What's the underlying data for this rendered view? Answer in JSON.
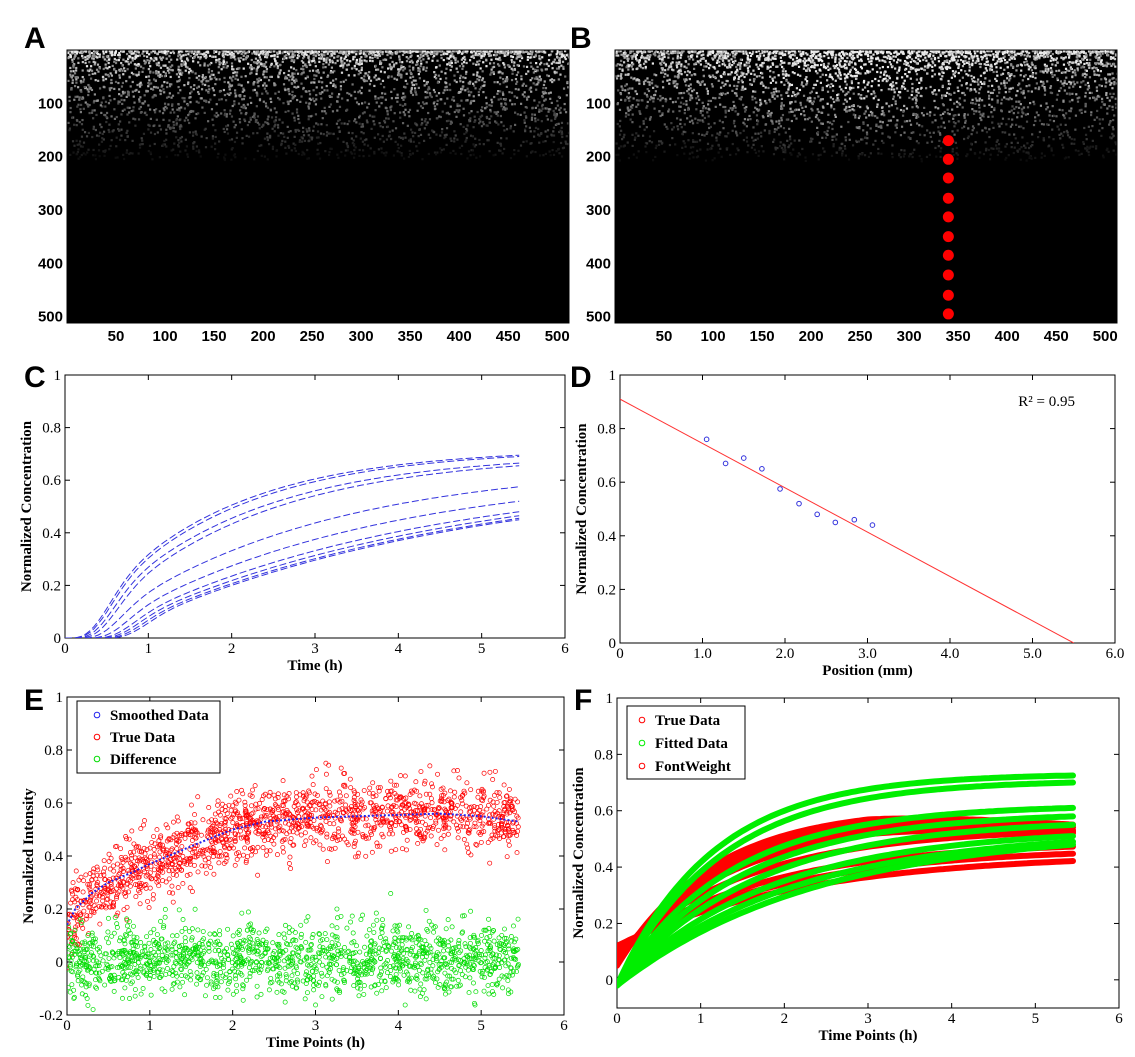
{
  "figure": {
    "panel_letters": [
      "A",
      "B",
      "C",
      "D",
      "E",
      "F"
    ]
  },
  "chart_data": [
    {
      "panel": "A",
      "type": "heatmap",
      "description_visible": "grayscale image, bright band at top fading to black",
      "xticks": [
        50,
        100,
        150,
        200,
        250,
        300,
        350,
        400,
        450,
        500
      ],
      "yticks": [
        100,
        200,
        300,
        400,
        500
      ],
      "xlim": [
        0,
        512
      ],
      "ylim": [
        0,
        512
      ],
      "colors": {
        "background": "#000000"
      }
    },
    {
      "panel": "B",
      "type": "heatmap",
      "xticks": [
        50,
        100,
        150,
        200,
        250,
        300,
        350,
        400,
        450,
        500
      ],
      "yticks": [
        100,
        200,
        300,
        400,
        500
      ],
      "xlim": [
        0,
        512
      ],
      "ylim": [
        0,
        512
      ],
      "markers": {
        "color": "#ff0000",
        "x": [
          340,
          340,
          340,
          340,
          340,
          340,
          340,
          340,
          340,
          340
        ],
        "y": [
          170,
          205,
          240,
          278,
          313,
          350,
          385,
          422,
          460,
          495
        ]
      }
    },
    {
      "panel": "C",
      "type": "line",
      "xlabel": "Time (h)",
      "ylabel": "Normalized Concentration",
      "xlim": [
        0,
        6
      ],
      "ylim": [
        0,
        1
      ],
      "xticks": [
        "0",
        "1",
        "2",
        "3",
        "4",
        "5",
        "6"
      ],
      "yticks": [
        "0",
        "0.2",
        "0.4",
        "0.6",
        "0.8",
        "1"
      ],
      "line_color": "#3333dd",
      "curve_params": [
        {
          "a": 0.72,
          "k": 0.62,
          "d": 0.05,
          "final": 0.695
        },
        {
          "a": 0.71,
          "k": 0.6,
          "d": 0.07,
          "final": 0.69
        },
        {
          "a": 0.69,
          "k": 0.55,
          "d": 0.1,
          "final": 0.665
        },
        {
          "a": 0.68,
          "k": 0.52,
          "d": 0.14,
          "final": 0.655
        },
        {
          "a": 0.66,
          "k": 0.38,
          "d": 0.18,
          "final": 0.575
        },
        {
          "a": 0.64,
          "k": 0.32,
          "d": 0.26,
          "final": 0.52
        },
        {
          "a": 0.62,
          "k": 0.28,
          "d": 0.33,
          "final": 0.48
        },
        {
          "a": 0.6,
          "k": 0.26,
          "d": 0.38,
          "final": 0.465
        },
        {
          "a": 0.59,
          "k": 0.25,
          "d": 0.43,
          "final": 0.455
        },
        {
          "a": 0.58,
          "k": 0.25,
          "d": 0.48,
          "final": 0.45
        }
      ]
    },
    {
      "panel": "D",
      "type": "scatter",
      "xlabel": "Position (mm)",
      "ylabel": "Normalized Concentration",
      "xlim": [
        0,
        6
      ],
      "ylim": [
        0,
        1
      ],
      "xticks": [
        "0",
        "1.0",
        "2.0",
        "3.0",
        "4.0",
        "5.0",
        "6.0"
      ],
      "yticks": [
        "0",
        "0.2",
        "0.4",
        "0.6",
        "0.8",
        "1"
      ],
      "annotation": "R² = 0.95",
      "points": {
        "x": [
          1.05,
          1.28,
          1.5,
          1.72,
          1.94,
          2.17,
          2.39,
          2.61,
          2.84,
          3.06
        ],
        "y": [
          0.76,
          0.67,
          0.69,
          0.65,
          0.575,
          0.52,
          0.48,
          0.45,
          0.46,
          0.44
        ]
      },
      "fit_line": {
        "x": [
          0,
          5.5
        ],
        "y": [
          0.91,
          0
        ]
      },
      "point_color": "#3333dd",
      "line_color": "#ff3333"
    },
    {
      "panel": "E",
      "type": "scatter",
      "xlabel": "Time Points (h)",
      "ylabel": "Normalized Intensity",
      "xlim": [
        0,
        6
      ],
      "ylim": [
        -0.2,
        1
      ],
      "xticks": [
        "0",
        "1",
        "2",
        "3",
        "4",
        "5",
        "6"
      ],
      "yticks": [
        "-0.2",
        "0",
        "0.2",
        "0.4",
        "0.6",
        "0.8",
        "1"
      ],
      "legend": [
        "Smoothed Data",
        "True Data",
        "Difference"
      ],
      "legend_colors": [
        "#2222ee",
        "#ff0000",
        "#00dd00"
      ],
      "legend_position": "top-left",
      "smoothed_curve": {
        "x": [
          0,
          0.1,
          0.3,
          0.5,
          0.8,
          1.0,
          1.3,
          1.6,
          2.0,
          2.4,
          3.0,
          3.5,
          4.0,
          4.5,
          5.0,
          5.45
        ],
        "y": [
          0.14,
          0.2,
          0.26,
          0.3,
          0.34,
          0.37,
          0.41,
          0.45,
          0.5,
          0.53,
          0.545,
          0.55,
          0.555,
          0.56,
          0.55,
          0.53
        ]
      }
    },
    {
      "panel": "F",
      "type": "line",
      "xlabel": "Time Points (h)",
      "ylabel": "Normalized Concentration",
      "xlim": [
        0,
        6
      ],
      "ylim": [
        -0.1,
        1
      ],
      "xticks": [
        "0",
        "1",
        "2",
        "3",
        "4",
        "5",
        "6"
      ],
      "yticks": [
        "0",
        "0.2",
        "0.4",
        "0.6",
        "0.8",
        "1"
      ],
      "legend": [
        "True Data",
        "Fitted Data",
        "FontWeight"
      ],
      "legend_colors": [
        "#ff0000",
        "#00ee00",
        "#ff0000"
      ],
      "legend_position": "top-left",
      "fitted_finals": [
        0.695,
        0.67,
        0.58,
        0.55,
        0.52,
        0.48,
        0.46,
        0.45
      ]
    }
  ]
}
